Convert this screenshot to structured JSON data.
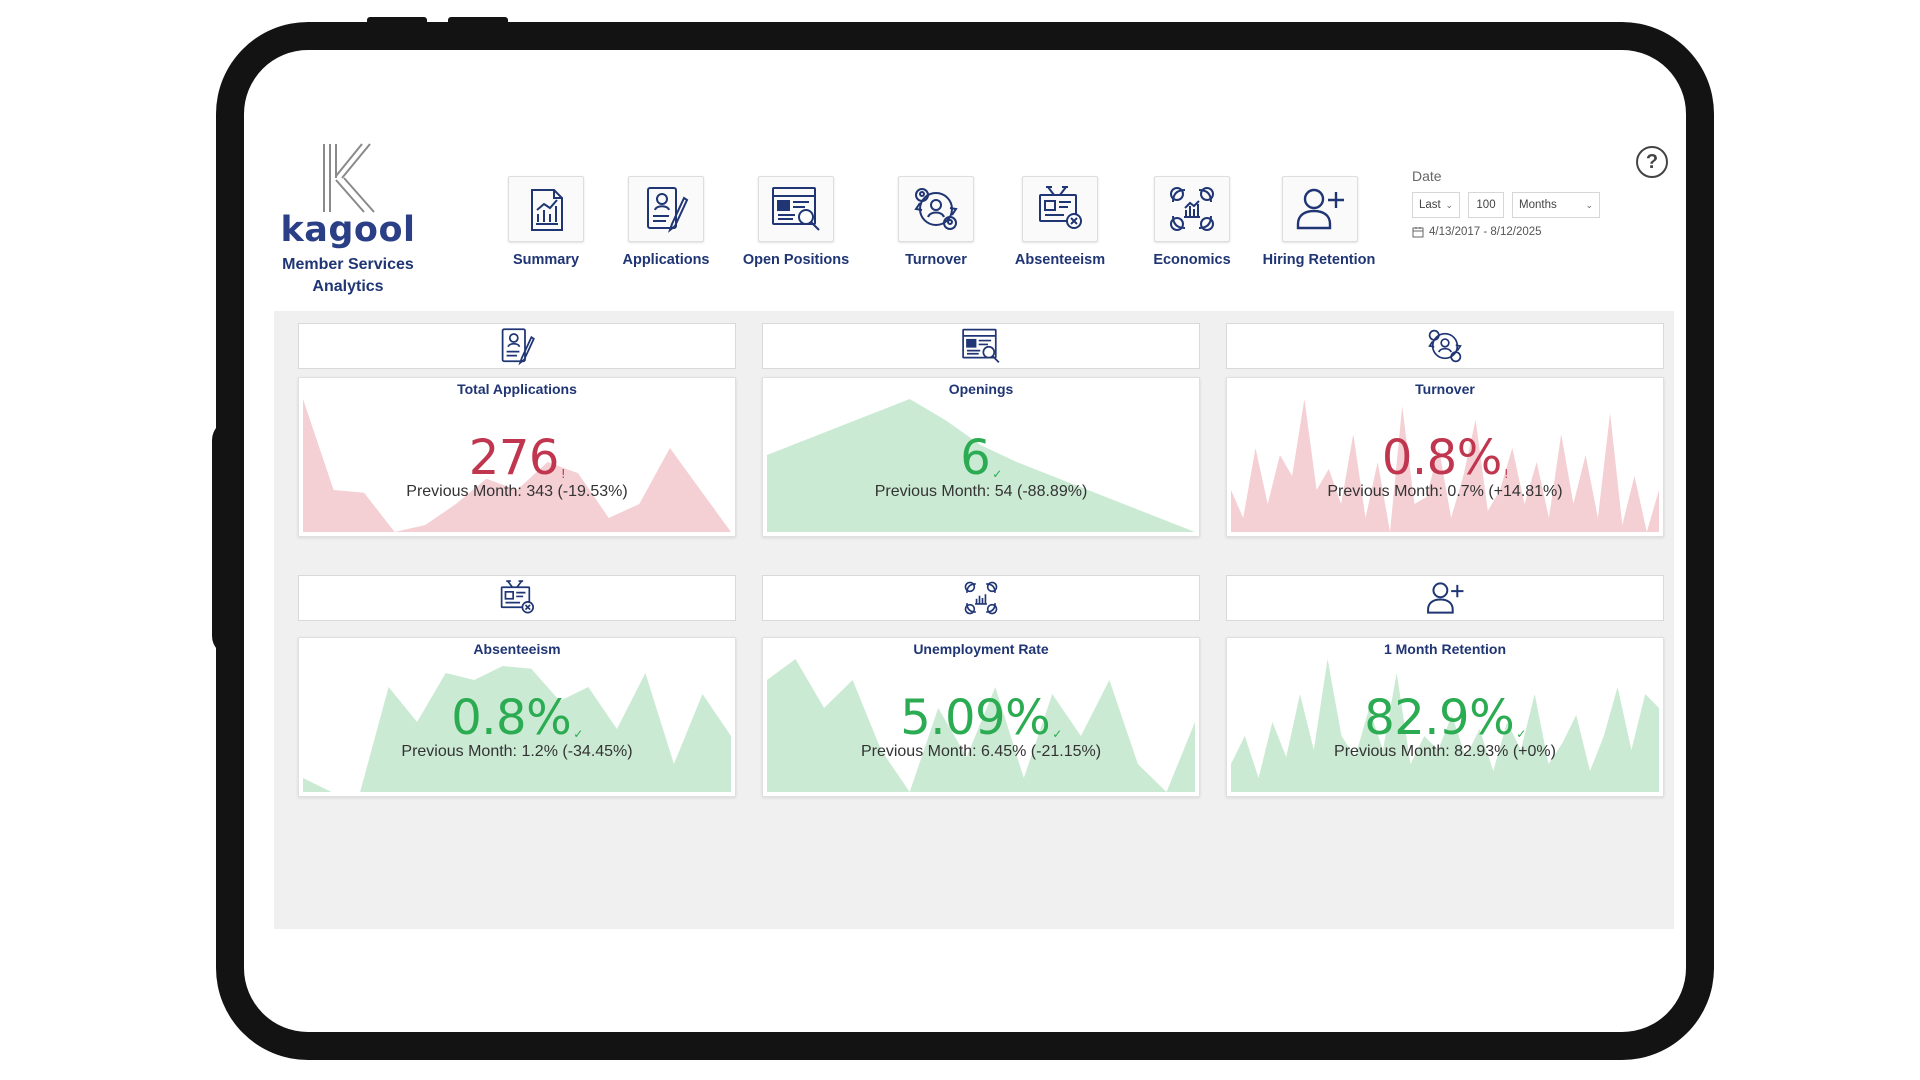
{
  "app": {
    "logo_letter": "K",
    "logo_word": "kagool",
    "subtitle_line1": "Member Services",
    "subtitle_line2": "Analytics"
  },
  "nav": [
    {
      "label": "Summary",
      "icon": "summary-report-icon"
    },
    {
      "label": "Applications",
      "icon": "applications-icon"
    },
    {
      "label": "Open Positions",
      "icon": "open-positions-icon"
    },
    {
      "label": "Turnover",
      "icon": "turnover-icon"
    },
    {
      "label": "Absenteeism",
      "icon": "absenteeism-icon"
    },
    {
      "label": "Economics",
      "icon": "economics-icon"
    },
    {
      "label": "Hiring Retention",
      "icon": "hiring-retention-icon"
    }
  ],
  "date_filter": {
    "label": "Date",
    "mode": "Last",
    "count": "100",
    "unit": "Months",
    "range": "4/13/2017 - 8/12/2025"
  },
  "help_label": "?",
  "colors": {
    "brand": "#1f3574",
    "negative": "#c0364e",
    "positive": "#2bab52",
    "negative_fill": "#f4cfd3",
    "positive_fill": "#cbead3"
  },
  "cards": [
    {
      "title": "Total Applications",
      "value": "276",
      "mark": "!",
      "status": "negative",
      "previous": "Previous Month: 343 (-19.53%)",
      "icon": "applications-icon",
      "trend": [
        95,
        30,
        28,
        0,
        5,
        20,
        38,
        30,
        50,
        42,
        10,
        20,
        60,
        30,
        0
      ]
    },
    {
      "title": "Openings",
      "value": "6",
      "mark": "✓",
      "status": "positive",
      "previous": "Previous Month: 54 (-88.89%)",
      "icon": "open-positions-icon",
      "trend": [
        55,
        65,
        75,
        85,
        95,
        80,
        62,
        50,
        40,
        30,
        20,
        10,
        0
      ]
    },
    {
      "title": "Turnover",
      "value": "0.8%",
      "mark": "!",
      "status": "negative",
      "previous": "Previous Month: 0.7% (+14.81%)",
      "icon": "turnover-icon",
      "trend": [
        30,
        10,
        60,
        20,
        55,
        40,
        95,
        30,
        45,
        20,
        70,
        10,
        50,
        0,
        90,
        20,
        25,
        60,
        10,
        40,
        80,
        15,
        30,
        60,
        20,
        50,
        10,
        70,
        20,
        55,
        10,
        85,
        5,
        40,
        0,
        30
      ]
    },
    {
      "title": "Absenteeism",
      "value": "0.8%",
      "mark": "✓",
      "status": "positive",
      "previous": "Previous Month: 1.2% (-34.45%)",
      "icon": "absenteeism-icon",
      "trend": [
        10,
        0,
        0,
        75,
        50,
        85,
        80,
        90,
        88,
        65,
        75,
        45,
        85,
        20,
        70,
        40
      ]
    },
    {
      "title": "Unemployment Rate",
      "value": "5.09%",
      "mark": "✓",
      "status": "positive",
      "previous": "Previous Month: 6.45% (-21.15%)",
      "icon": "economics-icon",
      "trend": [
        80,
        95,
        60,
        80,
        30,
        0,
        60,
        25,
        75,
        10,
        70,
        40,
        80,
        20,
        0,
        50
      ]
    },
    {
      "title": "1 Month Retention",
      "value": "82.9%",
      "mark": "✓",
      "status": "positive",
      "previous": "Previous Month: 82.93% (+0%)",
      "icon": "hiring-retention-icon",
      "trend": [
        20,
        40,
        10,
        50,
        25,
        70,
        30,
        95,
        40,
        25,
        60,
        30,
        85,
        20,
        40,
        30,
        55,
        25,
        45,
        15,
        50,
        30,
        70,
        20,
        35,
        55,
        15,
        40,
        75,
        30,
        70,
        60
      ]
    }
  ]
}
